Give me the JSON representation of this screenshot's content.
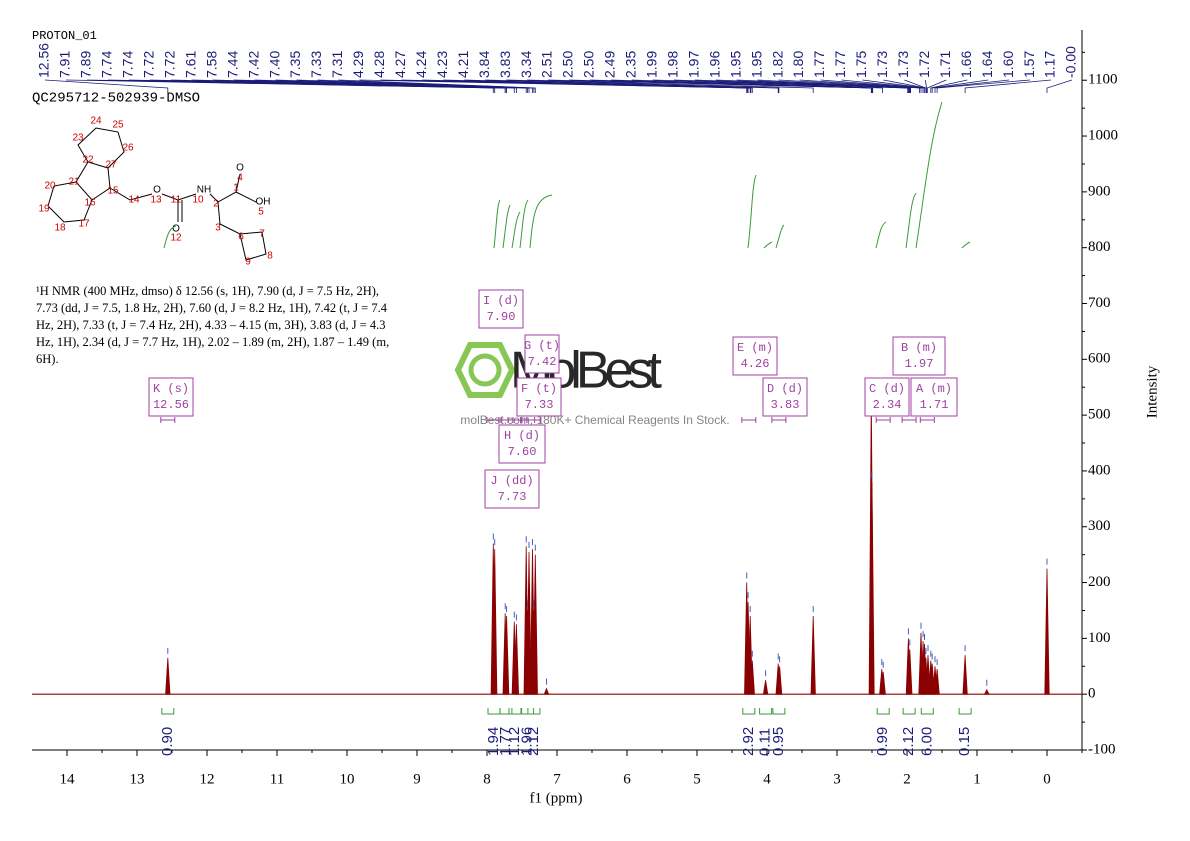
{
  "header": {
    "experiment": "PROTON_01",
    "sample": "QC295712-502939-DMSO"
  },
  "description": "¹H NMR (400 MHz, dmso) δ 12.56 (s, 1H), 7.90 (d, J = 7.5 Hz, 2H), 7.73 (dd, J = 7.5, 1.8 Hz, 2H), 7.60 (d, J = 8.2 Hz, 1H), 7.42 (t, J = 7.4 Hz, 2H), 7.33 (t, J = 7.4 Hz, 2H), 4.33 – 4.15 (m, 3H), 3.83 (d, J = 4.3 Hz, 1H), 2.34 (d, J = 7.7 Hz, 1H), 2.02 – 1.89 (m, 2H), 1.87 – 1.49 (m, 6H).",
  "structure_labels": [
    "23",
    "24",
    "25",
    "26",
    "22",
    "27",
    "21",
    "15",
    "20",
    "16",
    "19",
    "17",
    "18",
    "14",
    "13",
    "O",
    "11",
    "O",
    "12",
    "10",
    "NH",
    "2",
    "1",
    "4",
    "O",
    "OH",
    "5",
    "3",
    "6",
    "7",
    "8",
    "9"
  ],
  "watermark": {
    "brand": "MolBest",
    "tagline": "molBest.com, 180K+ Chemical Reagents In Stock."
  },
  "multiplets": [
    {
      "label": "I (d)",
      "shift": "7.90"
    },
    {
      "label": "G (t)",
      "shift": "7.42"
    },
    {
      "label": "F (t)",
      "shift": "7.33"
    },
    {
      "label": "H (d)",
      "shift": "7.60"
    },
    {
      "label": "J (dd)",
      "shift": "7.73"
    },
    {
      "label": "K (s)",
      "shift": "12.56"
    },
    {
      "label": "E (m)",
      "shift": "4.26"
    },
    {
      "label": "D (d)",
      "shift": "3.83"
    },
    {
      "label": "C (d)",
      "shift": "2.34"
    },
    {
      "label": "B (m)",
      "shift": "1.97"
    },
    {
      "label": "A (m)",
      "shift": "1.71"
    }
  ],
  "chart_data": {
    "type": "nmr",
    "x_label": "f1 (ppm)",
    "y_label": "Intensity",
    "color": "#8b0000",
    "xlim": [
      14.5,
      -0.5
    ],
    "xticks": [
      14,
      13,
      12,
      11,
      10,
      9,
      8,
      7,
      6,
      5,
      4,
      3,
      2,
      1,
      0
    ],
    "ylim": [
      -100,
      1190
    ],
    "yticks": [
      -100,
      0,
      100,
      200,
      300,
      400,
      500,
      600,
      700,
      800,
      900,
      1000,
      1100
    ],
    "x": [
      12.56,
      7.91,
      7.89,
      7.74,
      7.72,
      7.61,
      7.58,
      7.44,
      7.42,
      7.4,
      7.35,
      7.33,
      7.31,
      7.15,
      4.29,
      4.27,
      4.24,
      4.21,
      4.02,
      3.84,
      3.82,
      3.34,
      2.51,
      2.5,
      2.36,
      2.34,
      1.98,
      1.96,
      1.8,
      1.77,
      1.75,
      1.73,
      1.7,
      1.66,
      1.64,
      1.6,
      1.57,
      1.17,
      0.86,
      0.0
    ],
    "values": [
      65,
      270,
      260,
      145,
      140,
      130,
      125,
      265,
      150,
      255,
      260,
      150,
      250,
      10,
      200,
      165,
      140,
      60,
      25,
      55,
      50,
      140,
      540,
      380,
      45,
      40,
      100,
      80,
      110,
      95,
      90,
      65,
      70,
      60,
      55,
      50,
      45,
      70,
      8,
      225
    ],
    "peak_labels": [
      "12.56",
      "7.91",
      "7.89",
      "7.74",
      "7.74",
      "7.72",
      "7.72",
      "7.61",
      "7.58",
      "7.44",
      "7.42",
      "7.40",
      "7.35",
      "7.33",
      "7.31",
      "4.29",
      "4.28",
      "4.27",
      "4.24",
      "4.23",
      "4.21",
      "3.84",
      "3.83",
      "3.34",
      "2.51",
      "2.50",
      "2.50",
      "2.49",
      "2.35",
      "1.99",
      "1.98",
      "1.97",
      "1.96",
      "1.95",
      "1.95",
      "1.82",
      "1.80",
      "1.77",
      "1.77",
      "1.75",
      "1.73",
      "1.73",
      "1.72",
      "1.71",
      "1.66",
      "1.64",
      "1.60",
      "1.57",
      "1.17",
      "-0.00"
    ],
    "integrals": {
      "x": [
        12.56,
        7.9,
        7.73,
        7.6,
        7.42,
        7.33,
        4.26,
        4.02,
        3.83,
        2.34,
        1.97,
        1.71,
        1.17
      ],
      "labels": [
        "0.90",
        "1.94",
        "1.77",
        "1.12",
        "1.96",
        "2.12",
        "2.92",
        "0.11",
        "0.95",
        "0.99",
        "2.12",
        "6.00",
        "0.15"
      ]
    }
  }
}
